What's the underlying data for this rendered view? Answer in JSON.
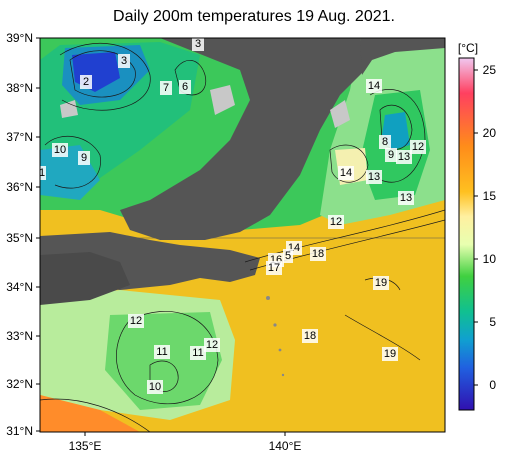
{
  "title": "Daily 200m temperatures 19 Aug. 2021.",
  "colorbar": {
    "unit": "[°C]",
    "ticks": [
      "25",
      "20",
      "15",
      "10",
      "5",
      "0"
    ]
  },
  "axes": {
    "lat_labels": [
      "39°N",
      "38°N",
      "37°N",
      "36°N",
      "35°N",
      "34°N",
      "33°N",
      "32°N",
      "31°N"
    ],
    "lon_labels": [
      "135°E",
      "140°E"
    ]
  },
  "contour_labels": [
    {
      "text": "3"
    },
    {
      "text": "3"
    },
    {
      "text": "2"
    },
    {
      "text": "7"
    },
    {
      "text": "6"
    },
    {
      "text": "14"
    },
    {
      "text": "10"
    },
    {
      "text": "9"
    },
    {
      "text": "1"
    },
    {
      "text": "8"
    },
    {
      "text": "9"
    },
    {
      "text": "13"
    },
    {
      "text": "12"
    },
    {
      "text": "14"
    },
    {
      "text": "13"
    },
    {
      "text": "13"
    },
    {
      "text": "12"
    },
    {
      "text": "14"
    },
    {
      "text": "5"
    },
    {
      "text": "16"
    },
    {
      "text": "18"
    },
    {
      "text": "17"
    },
    {
      "text": "19"
    },
    {
      "text": "12"
    },
    {
      "text": "18"
    },
    {
      "text": "11"
    },
    {
      "text": "12"
    },
    {
      "text": "11"
    },
    {
      "text": "19"
    },
    {
      "text": "10"
    }
  ]
}
